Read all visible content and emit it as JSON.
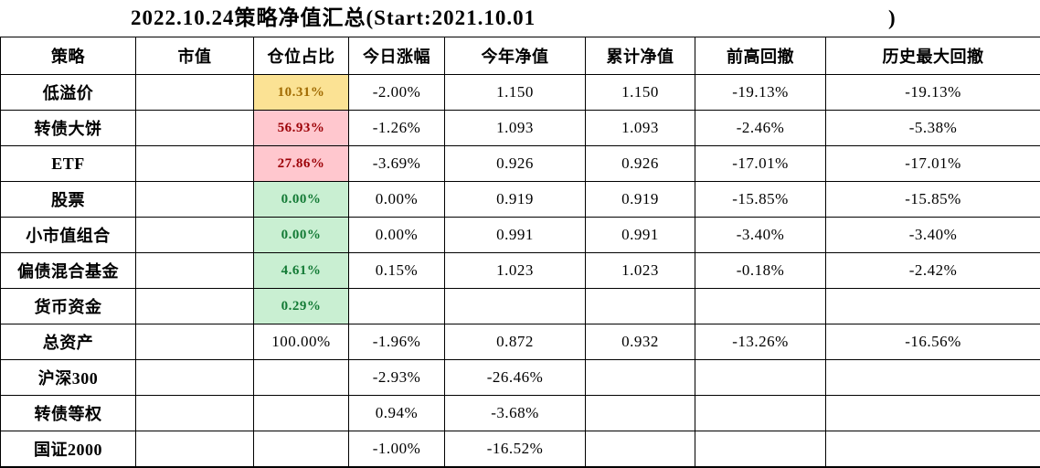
{
  "title": {
    "text": "2022.10.24策略净值汇总(Start:2021.10.01",
    "closing_paren": ")"
  },
  "colors": {
    "background": "#FFFFFF",
    "border": "#000000",
    "text": "#000000",
    "neutral_bg": "#FBE294",
    "neutral_text": "#A06A00",
    "bad_bg": "#FFC7CE",
    "bad_text": "#9C0006",
    "good_bg": "#C9EFD2",
    "good_text": "#137A35"
  },
  "table": {
    "columns": [
      "策略",
      "市值",
      "仓位占比",
      "今日涨幅",
      "今年净值",
      "累计净值",
      "前高回撤",
      "历史最大回撤"
    ],
    "rows": [
      {
        "highlight": "neutral",
        "cells": [
          "低溢价",
          "",
          "10.31%",
          "-2.00%",
          "1.150",
          "1.150",
          "-19.13%",
          "-19.13%"
        ]
      },
      {
        "highlight": "bad",
        "cells": [
          "转债大饼",
          "",
          "56.93%",
          "-1.26%",
          "1.093",
          "1.093",
          "-2.46%",
          "-5.38%"
        ]
      },
      {
        "highlight": "bad",
        "cells": [
          "ETF",
          "",
          "27.86%",
          "-3.69%",
          "0.926",
          "0.926",
          "-17.01%",
          "-17.01%"
        ]
      },
      {
        "highlight": "good",
        "cells": [
          "股票",
          "",
          "0.00%",
          "0.00%",
          "0.919",
          "0.919",
          "-15.85%",
          "-15.85%"
        ]
      },
      {
        "highlight": "good",
        "cells": [
          "小市值组合",
          "",
          "0.00%",
          "0.00%",
          "0.991",
          "0.991",
          "-3.40%",
          "-3.40%"
        ]
      },
      {
        "highlight": "good",
        "cells": [
          "偏债混合基金",
          "",
          "4.61%",
          "0.15%",
          "1.023",
          "1.023",
          "-0.18%",
          "-2.42%"
        ]
      },
      {
        "highlight": "good",
        "cells": [
          "货币资金",
          "",
          "0.29%",
          "",
          "",
          "",
          "",
          ""
        ]
      },
      {
        "highlight": "none",
        "cells": [
          "总资产",
          "",
          "100.00%",
          "-1.96%",
          "0.872",
          "0.932",
          "-13.26%",
          "-16.56%"
        ]
      },
      {
        "highlight": "none",
        "cells": [
          "沪深300",
          "",
          "",
          "-2.93%",
          "-26.46%",
          "",
          "",
          ""
        ]
      },
      {
        "highlight": "none",
        "cells": [
          "转债等权",
          "",
          "",
          "0.94%",
          "-3.68%",
          "",
          "",
          ""
        ]
      },
      {
        "highlight": "none",
        "cells": [
          "国证2000",
          "",
          "",
          "-1.00%",
          "-16.52%",
          "",
          "",
          ""
        ]
      }
    ]
  }
}
